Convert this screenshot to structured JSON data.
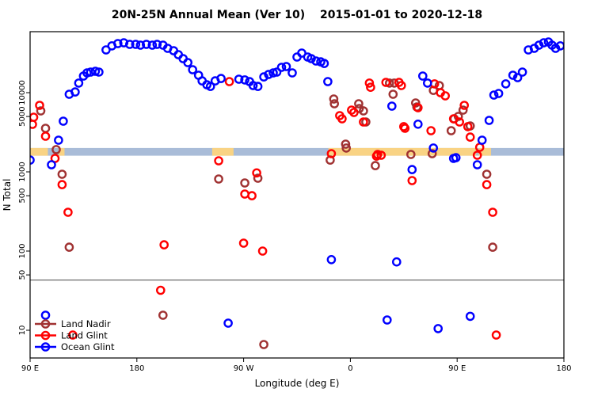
{
  "chart_data": {
    "type": "scatter",
    "title": "20N-25N Annual Mean (Ver 10)  2015-01-01 to 2020-12-18",
    "xlabel": "Longitude (deg E)",
    "ylabel": "N Total",
    "x_axis": {
      "range_deg_east": [
        90,
        540
      ],
      "ticks": [
        {
          "pos": 90,
          "label": "90 E"
        },
        {
          "pos": 180,
          "label": "180"
        },
        {
          "pos": 270,
          "label": "90 W"
        },
        {
          "pos": 360,
          "label": "0"
        },
        {
          "pos": 450,
          "label": "90 E"
        },
        {
          "pos": 540,
          "label": "180"
        }
      ]
    },
    "y_axis": {
      "scale": "log10",
      "range": [
        4.5,
        59000
      ],
      "ticks": [
        {
          "value": 10000,
          "label": "10000"
        },
        {
          "value": 5000,
          "label": "5000"
        },
        {
          "value": 1000,
          "label": "1000"
        },
        {
          "value": 500,
          "label": "500"
        },
        {
          "value": 100,
          "label": "100"
        },
        {
          "value": 50,
          "label": "50"
        },
        {
          "value": 10,
          "label": "10"
        }
      ]
    },
    "threshold_line_value": 43,
    "map_band": {
      "description": "land/ocean strip for 20N-25N drawn across plot",
      "value_range": [
        1600,
        2000
      ],
      "ocean_color": "#A9BCD8",
      "land_color": "#F9D384",
      "land_segments_deg": [
        [
          90,
          105
        ],
        [
          114,
          119
        ],
        [
          243.5,
          261.5
        ],
        [
          341.5,
          466
        ],
        [
          468,
          478.5
        ]
      ]
    },
    "legend": {
      "position": "bottom-left"
    },
    "series": [
      {
        "name": "Land Nadir",
        "color": "#A03232",
        "points": [
          [
            99,
            5890
          ],
          [
            103,
            3550
          ],
          [
            112,
            1910
          ],
          [
            117,
            933
          ],
          [
            123,
            112
          ],
          [
            202,
            15.5
          ],
          [
            287,
            6.6
          ],
          [
            249,
            813
          ],
          [
            271,
            724
          ],
          [
            282,
            832
          ],
          [
            343,
            1410
          ],
          [
            346,
            8320
          ],
          [
            346.5,
            7240
          ],
          [
            356,
            2240
          ],
          [
            356.5,
            2000
          ],
          [
            367,
            7240
          ],
          [
            367.5,
            6310
          ],
          [
            371,
            5890
          ],
          [
            373,
            4270
          ],
          [
            381,
            1200
          ],
          [
            393,
            13200
          ],
          [
            396,
            9550
          ],
          [
            397,
            13200
          ],
          [
            411,
            1660
          ],
          [
            415,
            7410
          ],
          [
            416,
            6610
          ],
          [
            429,
            1700
          ],
          [
            430,
            10700
          ],
          [
            435,
            12300
          ],
          [
            445,
            3310
          ],
          [
            447.5,
            4680
          ],
          [
            451,
            5010
          ],
          [
            455,
            6030
          ],
          [
            461,
            3800
          ],
          [
            475,
            933
          ],
          [
            480,
            112
          ]
        ]
      },
      {
        "name": "Land Glint",
        "color": "#FF0000",
        "points": [
          [
            98,
            6920
          ],
          [
            93,
            4900
          ],
          [
            92,
            3980
          ],
          [
            103,
            2820
          ],
          [
            111,
            1480
          ],
          [
            117,
            690
          ],
          [
            122,
            309
          ],
          [
            126,
            8.7
          ],
          [
            200,
            32
          ],
          [
            203,
            120
          ],
          [
            249,
            1380
          ],
          [
            258,
            13800
          ],
          [
            270,
            126
          ],
          [
            271,
            525
          ],
          [
            277,
            500
          ],
          [
            281,
            970
          ],
          [
            286,
            100
          ],
          [
            344,
            1700
          ],
          [
            351,
            5130
          ],
          [
            353,
            4680
          ],
          [
            361,
            6030
          ],
          [
            363,
            5620
          ],
          [
            371,
            4270
          ],
          [
            376,
            13200
          ],
          [
            377,
            11700
          ],
          [
            382,
            1580
          ],
          [
            383,
            1660
          ],
          [
            386,
            1620
          ],
          [
            390,
            13500
          ],
          [
            401,
            13500
          ],
          [
            403,
            12300
          ],
          [
            405,
            3720
          ],
          [
            406,
            3550
          ],
          [
            412,
            776
          ],
          [
            417,
            6460
          ],
          [
            428,
            3310
          ],
          [
            431,
            12900
          ],
          [
            436,
            10000
          ],
          [
            440,
            9120
          ],
          [
            447,
            4680
          ],
          [
            452,
            4270
          ],
          [
            456,
            6920
          ],
          [
            459,
            3720
          ],
          [
            461,
            2750
          ],
          [
            467,
            1620
          ],
          [
            469,
            2040
          ],
          [
            475,
            690
          ],
          [
            480,
            309
          ],
          [
            483,
            8.7
          ]
        ]
      },
      {
        "name": "Ocean Glint",
        "color": "#0000FF",
        "points": [
          [
            154,
            34700
          ],
          [
            159,
            39000
          ],
          [
            164,
            41700
          ],
          [
            169,
            42700
          ],
          [
            174,
            40700
          ],
          [
            179,
            40700
          ],
          [
            183,
            39800
          ],
          [
            188,
            40700
          ],
          [
            193,
            39800
          ],
          [
            197,
            40700
          ],
          [
            202,
            39800
          ],
          [
            206,
            36300
          ],
          [
            211,
            33900
          ],
          [
            215,
            30200
          ],
          [
            219,
            26900
          ],
          [
            223,
            24000
          ],
          [
            227,
            19500
          ],
          [
            232,
            16600
          ],
          [
            235,
            14100
          ],
          [
            239,
            12600
          ],
          [
            123,
            9550
          ],
          [
            128,
            10200
          ],
          [
            131,
            13200
          ],
          [
            135,
            16200
          ],
          [
            138,
            17800
          ],
          [
            141,
            18200
          ],
          [
            145,
            18600
          ],
          [
            148,
            18200
          ],
          [
            118,
            4370
          ],
          [
            114,
            2510
          ],
          [
            108,
            1230
          ],
          [
            90,
            1410
          ],
          [
            103,
            15.5
          ],
          [
            242,
            12000
          ],
          [
            246,
            14100
          ],
          [
            251,
            15100
          ],
          [
            257,
            12.3
          ],
          [
            266,
            14800
          ],
          [
            271,
            14500
          ],
          [
            275,
            13800
          ],
          [
            278,
            12300
          ],
          [
            282,
            12000
          ],
          [
            287,
            15800
          ],
          [
            291,
            17000
          ],
          [
            295,
            17800
          ],
          [
            298,
            18200
          ],
          [
            302,
            20900
          ],
          [
            306,
            21400
          ],
          [
            311,
            17800
          ],
          [
            315,
            28200
          ],
          [
            319,
            31600
          ],
          [
            324,
            28200
          ],
          [
            327,
            26900
          ],
          [
            331,
            25100
          ],
          [
            335,
            24500
          ],
          [
            338,
            23400
          ],
          [
            341,
            13800
          ],
          [
            344,
            78
          ],
          [
            391,
            13.5
          ],
          [
            395,
            6760
          ],
          [
            399,
            73
          ],
          [
            412,
            1070
          ],
          [
            417,
            4000
          ],
          [
            421,
            16200
          ],
          [
            425,
            13200
          ],
          [
            430,
            2000
          ],
          [
            434,
            10.5
          ],
          [
            447,
            1480
          ],
          [
            449,
            1510
          ],
          [
            461,
            15
          ],
          [
            467,
            1230
          ],
          [
            471,
            2510
          ],
          [
            477,
            4470
          ],
          [
            481,
            9330
          ],
          [
            485,
            9770
          ],
          [
            491,
            12900
          ],
          [
            497,
            16600
          ],
          [
            501,
            15500
          ],
          [
            505,
            18200
          ],
          [
            510,
            34700
          ],
          [
            515,
            36300
          ],
          [
            519,
            39800
          ],
          [
            523,
            42700
          ],
          [
            527,
            43700
          ],
          [
            530,
            39800
          ],
          [
            533,
            36300
          ],
          [
            537,
            39000
          ]
        ]
      }
    ]
  }
}
